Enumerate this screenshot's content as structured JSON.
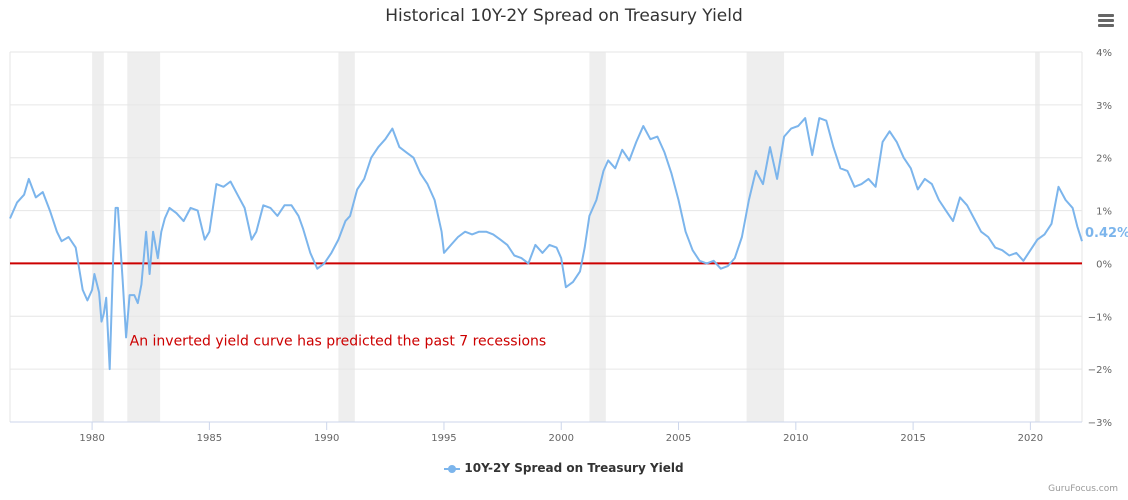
{
  "chart_data": {
    "type": "line",
    "title": "Historical 10Y-2Y Spread on Treasury Yield",
    "xlabel": "",
    "ylabel": "",
    "x_range": [
      1976.5,
      2022.2
    ],
    "ylim": [
      -3,
      4
    ],
    "x_ticks": [
      "1980",
      "1985",
      "1990",
      "1995",
      "2000",
      "2005",
      "2010",
      "2015",
      "2020"
    ],
    "y_ticks": [
      "4%",
      "3%",
      "2%",
      "1%",
      "0%",
      "−1%",
      "−2%",
      "−3%"
    ],
    "y_axis_side": "right",
    "grid": true,
    "line_color": "#7cb5ec",
    "zero_line_color": "#cc0000",
    "recession_band_color": "#eeeeee",
    "recessions": [
      [
        1980.0,
        1980.5
      ],
      [
        1981.5,
        1982.9
      ],
      [
        1990.5,
        1991.2
      ],
      [
        2001.2,
        2001.9
      ],
      [
        2007.9,
        2009.5
      ],
      [
        2020.2,
        2020.4
      ]
    ],
    "annotation": "An inverted yield curve has predicted the past 7 recessions",
    "last_value_label": "0.42%",
    "legend_position": "bottom-center",
    "series": [
      {
        "name": "10Y-2Y Spread on Treasury Yield",
        "points": [
          [
            1976.5,
            0.85
          ],
          [
            1976.8,
            1.15
          ],
          [
            1977.1,
            1.3
          ],
          [
            1977.3,
            1.6
          ],
          [
            1977.6,
            1.25
          ],
          [
            1977.9,
            1.35
          ],
          [
            1978.2,
            1.0
          ],
          [
            1978.5,
            0.6
          ],
          [
            1978.7,
            0.42
          ],
          [
            1979.0,
            0.5
          ],
          [
            1979.3,
            0.3
          ],
          [
            1979.6,
            -0.5
          ],
          [
            1979.8,
            -0.7
          ],
          [
            1980.0,
            -0.5
          ],
          [
            1980.1,
            -0.2
          ],
          [
            1980.3,
            -0.55
          ],
          [
            1980.4,
            -1.1
          ],
          [
            1980.5,
            -0.95
          ],
          [
            1980.6,
            -0.65
          ],
          [
            1980.75,
            -2.0
          ],
          [
            1980.9,
            0.1
          ],
          [
            1981.0,
            1.05
          ],
          [
            1981.1,
            1.05
          ],
          [
            1981.3,
            -0.3
          ],
          [
            1981.45,
            -1.4
          ],
          [
            1981.6,
            -0.6
          ],
          [
            1981.8,
            -0.6
          ],
          [
            1981.95,
            -0.75
          ],
          [
            1982.1,
            -0.4
          ],
          [
            1982.3,
            0.6
          ],
          [
            1982.45,
            -0.2
          ],
          [
            1982.6,
            0.6
          ],
          [
            1982.8,
            0.1
          ],
          [
            1982.95,
            0.6
          ],
          [
            1983.1,
            0.85
          ],
          [
            1983.3,
            1.05
          ],
          [
            1983.6,
            0.95
          ],
          [
            1983.9,
            0.8
          ],
          [
            1984.2,
            1.05
          ],
          [
            1984.5,
            1.0
          ],
          [
            1984.8,
            0.45
          ],
          [
            1985.0,
            0.6
          ],
          [
            1985.3,
            1.5
          ],
          [
            1985.6,
            1.45
          ],
          [
            1985.9,
            1.55
          ],
          [
            1986.2,
            1.3
          ],
          [
            1986.5,
            1.05
          ],
          [
            1986.8,
            0.45
          ],
          [
            1987.0,
            0.6
          ],
          [
            1987.3,
            1.1
          ],
          [
            1987.6,
            1.05
          ],
          [
            1987.9,
            0.9
          ],
          [
            1988.2,
            1.1
          ],
          [
            1988.5,
            1.1
          ],
          [
            1988.8,
            0.9
          ],
          [
            1989.0,
            0.65
          ],
          [
            1989.3,
            0.2
          ],
          [
            1989.6,
            -0.1
          ],
          [
            1989.9,
            0.0
          ],
          [
            1990.2,
            0.2
          ],
          [
            1990.5,
            0.45
          ],
          [
            1990.8,
            0.8
          ],
          [
            1991.0,
            0.9
          ],
          [
            1991.3,
            1.4
          ],
          [
            1991.6,
            1.6
          ],
          [
            1991.9,
            2.0
          ],
          [
            1992.2,
            2.2
          ],
          [
            1992.5,
            2.35
          ],
          [
            1992.8,
            2.55
          ],
          [
            1993.1,
            2.2
          ],
          [
            1993.4,
            2.1
          ],
          [
            1993.7,
            2.0
          ],
          [
            1994.0,
            1.7
          ],
          [
            1994.3,
            1.5
          ],
          [
            1994.6,
            1.2
          ],
          [
            1994.9,
            0.6
          ],
          [
            1995.0,
            0.2
          ],
          [
            1995.3,
            0.35
          ],
          [
            1995.6,
            0.5
          ],
          [
            1995.9,
            0.6
          ],
          [
            1996.2,
            0.55
          ],
          [
            1996.5,
            0.6
          ],
          [
            1996.8,
            0.6
          ],
          [
            1997.1,
            0.55
          ],
          [
            1997.4,
            0.45
          ],
          [
            1997.7,
            0.35
          ],
          [
            1998.0,
            0.15
          ],
          [
            1998.3,
            0.1
          ],
          [
            1998.6,
            0.0
          ],
          [
            1998.9,
            0.35
          ],
          [
            1999.2,
            0.2
          ],
          [
            1999.5,
            0.35
          ],
          [
            1999.8,
            0.3
          ],
          [
            2000.0,
            0.1
          ],
          [
            2000.2,
            -0.45
          ],
          [
            2000.5,
            -0.35
          ],
          [
            2000.8,
            -0.15
          ],
          [
            2001.0,
            0.3
          ],
          [
            2001.2,
            0.9
          ],
          [
            2001.5,
            1.2
          ],
          [
            2001.8,
            1.75
          ],
          [
            2002.0,
            1.95
          ],
          [
            2002.3,
            1.8
          ],
          [
            2002.6,
            2.15
          ],
          [
            2002.9,
            1.95
          ],
          [
            2003.2,
            2.3
          ],
          [
            2003.5,
            2.6
          ],
          [
            2003.8,
            2.35
          ],
          [
            2004.1,
            2.4
          ],
          [
            2004.4,
            2.1
          ],
          [
            2004.7,
            1.7
          ],
          [
            2005.0,
            1.2
          ],
          [
            2005.3,
            0.6
          ],
          [
            2005.6,
            0.25
          ],
          [
            2005.9,
            0.05
          ],
          [
            2006.2,
            0.0
          ],
          [
            2006.5,
            0.05
          ],
          [
            2006.8,
            -0.1
          ],
          [
            2007.1,
            -0.05
          ],
          [
            2007.4,
            0.1
          ],
          [
            2007.7,
            0.5
          ],
          [
            2008.0,
            1.2
          ],
          [
            2008.3,
            1.75
          ],
          [
            2008.6,
            1.5
          ],
          [
            2008.9,
            2.2
          ],
          [
            2009.2,
            1.6
          ],
          [
            2009.5,
            2.4
          ],
          [
            2009.8,
            2.55
          ],
          [
            2010.1,
            2.6
          ],
          [
            2010.4,
            2.75
          ],
          [
            2010.7,
            2.05
          ],
          [
            2011.0,
            2.75
          ],
          [
            2011.3,
            2.7
          ],
          [
            2011.6,
            2.2
          ],
          [
            2011.9,
            1.8
          ],
          [
            2012.2,
            1.75
          ],
          [
            2012.5,
            1.45
          ],
          [
            2012.8,
            1.5
          ],
          [
            2013.1,
            1.6
          ],
          [
            2013.4,
            1.45
          ],
          [
            2013.7,
            2.3
          ],
          [
            2014.0,
            2.5
          ],
          [
            2014.3,
            2.3
          ],
          [
            2014.6,
            2.0
          ],
          [
            2014.9,
            1.8
          ],
          [
            2015.2,
            1.4
          ],
          [
            2015.5,
            1.6
          ],
          [
            2015.8,
            1.5
          ],
          [
            2016.1,
            1.2
          ],
          [
            2016.4,
            1.0
          ],
          [
            2016.7,
            0.8
          ],
          [
            2017.0,
            1.25
          ],
          [
            2017.3,
            1.1
          ],
          [
            2017.6,
            0.85
          ],
          [
            2017.9,
            0.6
          ],
          [
            2018.2,
            0.5
          ],
          [
            2018.5,
            0.3
          ],
          [
            2018.8,
            0.25
          ],
          [
            2019.1,
            0.15
          ],
          [
            2019.4,
            0.2
          ],
          [
            2019.7,
            0.05
          ],
          [
            2020.0,
            0.25
          ],
          [
            2020.3,
            0.45
          ],
          [
            2020.6,
            0.55
          ],
          [
            2020.9,
            0.75
          ],
          [
            2021.2,
            1.45
          ],
          [
            2021.5,
            1.2
          ],
          [
            2021.8,
            1.05
          ],
          [
            2022.0,
            0.7
          ],
          [
            2022.2,
            0.42
          ]
        ]
      }
    ]
  },
  "credits": "GuruFocus.com"
}
